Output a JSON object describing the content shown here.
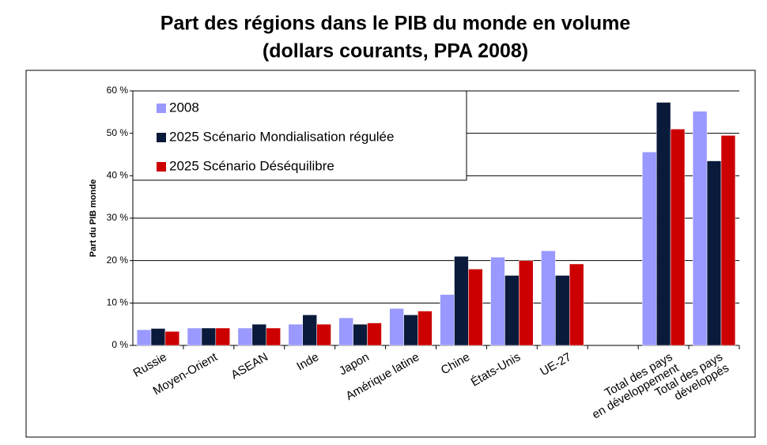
{
  "chart_data": {
    "type": "bar",
    "title": "Part des régions dans le PIB du monde en volume",
    "subtitle": "(dollars courants, PPA 2008)",
    "ylabel": "Part du PIB monde",
    "categories": [
      "Russie",
      "Moyen-Orient",
      "ASEAN",
      "Inde",
      "Japon",
      "Amérique latine",
      "Chine",
      "États-Unis",
      "UE-27",
      null,
      "Total des pays\nen développement",
      "Total des pays\ndéveloppés"
    ],
    "series": [
      {
        "name": "2008",
        "color": "#9999ff",
        "values": [
          3.7,
          4.1,
          4.1,
          5,
          6.5,
          8.7,
          12,
          20.8,
          22.3,
          null,
          45.6,
          55.2
        ]
      },
      {
        "name": "2025 Scénario Mondialisation régulée",
        "color": "#0a1a3a",
        "values": [
          4,
          4.1,
          5,
          7.2,
          5,
          7.2,
          21,
          16.5,
          16.5,
          null,
          57.3,
          43.5
        ]
      },
      {
        "name": "2025 Scénario Déséquilibre",
        "color": "#cc0000",
        "values": [
          3.3,
          4.1,
          4.1,
          5,
          5.3,
          8.1,
          18,
          20,
          19.2,
          null,
          51,
          49.5
        ]
      }
    ],
    "ylim": [
      0,
      60
    ],
    "yticks": [
      {
        "value": 0,
        "label": "0 %"
      },
      {
        "value": 10,
        "label": "10 %"
      },
      {
        "value": 20,
        "label": "20 %"
      },
      {
        "value": 30,
        "label": "30 %"
      },
      {
        "value": 40,
        "label": "40 %"
      },
      {
        "value": 50,
        "label": "50 %"
      },
      {
        "value": 60,
        "label": "60 %"
      }
    ],
    "grid": true,
    "legend": "top-left"
  }
}
